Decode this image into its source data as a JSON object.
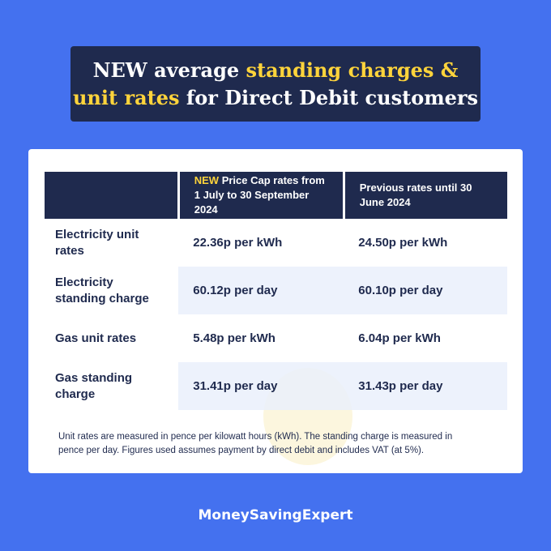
{
  "title": {
    "line1": {
      "plain": "NEW average",
      "highlight": "standing charges &"
    },
    "line2": {
      "highlight": "unit rates",
      "plain": "for Direct Debit customers"
    }
  },
  "table": {
    "header": [
      {
        "highlight": "NEW",
        "text": "Price Cap rates from 1 July to 30 September 2024"
      },
      {
        "text": "Previous rates until 30 June 2024"
      }
    ],
    "rows": [
      [
        "Electricity unit rates",
        "22.36p per kWh",
        "24.50p per kWh"
      ],
      [
        "Electricity standing charge",
        "60.12p per day",
        "60.10p per day"
      ],
      [
        "Gas unit rates",
        "5.48p per kWh",
        "6.04p per kWh"
      ],
      [
        "Gas standing charge",
        "31.41p per day",
        "31.43p per day"
      ]
    ]
  },
  "footnote": "Unit rates are measured in pence per kilowatt hours (kWh). The standing charge is measured in pence per day. Figures used assumes payment by direct debit and includes VAT (at 5%).",
  "brand": "MoneySavingExpert"
}
